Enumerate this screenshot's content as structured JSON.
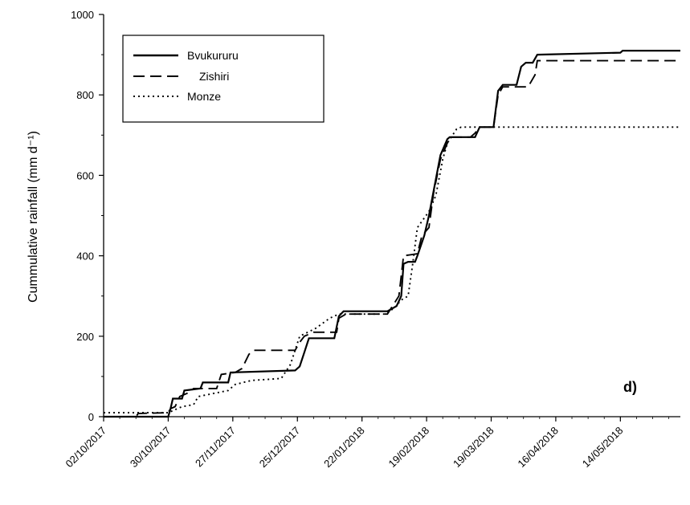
{
  "chart_data": {
    "type": "line",
    "panel_label": "d)",
    "xlabel": "",
    "ylabel": "Cummulative rainfall (mm d⁻¹)",
    "ylim": [
      0,
      1000
    ],
    "y_ticks": [
      0,
      200,
      400,
      600,
      800,
      1000
    ],
    "xlim": [
      "2017-10-02",
      "2018-06-09"
    ],
    "x_ticks": [
      "2017-10-02",
      "2017-10-30",
      "2017-11-27",
      "2017-12-25",
      "2018-01-22",
      "2018-02-19",
      "2018-03-19",
      "2018-04-16",
      "2018-05-14"
    ],
    "x_tick_labels": [
      "02/10/2017",
      "30/10/2017",
      "27/11/2017",
      "25/12/2017",
      "22/01/2018",
      "19/02/2018",
      "19/03/2018",
      "16/04/2018",
      "14/05/2018"
    ],
    "legend_position": "top-left",
    "series": [
      {
        "name": "Bvukururu",
        "style": "solid",
        "points": [
          [
            "2017-10-02",
            0
          ],
          [
            "2017-10-30",
            0
          ],
          [
            "2017-10-31",
            20
          ],
          [
            "2017-11-01",
            45
          ],
          [
            "2017-11-05",
            45
          ],
          [
            "2017-11-06",
            65
          ],
          [
            "2017-11-13",
            70
          ],
          [
            "2017-11-14",
            85
          ],
          [
            "2017-11-25",
            85
          ],
          [
            "2017-11-26",
            110
          ],
          [
            "2017-12-24",
            115
          ],
          [
            "2017-12-26",
            125
          ],
          [
            "2017-12-28",
            160
          ],
          [
            "2017-12-30",
            195
          ],
          [
            "2018-01-10",
            195
          ],
          [
            "2018-01-12",
            250
          ],
          [
            "2018-01-14",
            262
          ],
          [
            "2018-02-02",
            262
          ],
          [
            "2018-02-06",
            275
          ],
          [
            "2018-02-08",
            300
          ],
          [
            "2018-02-09",
            380
          ],
          [
            "2018-02-11",
            385
          ],
          [
            "2018-02-14",
            385
          ],
          [
            "2018-02-15",
            400
          ],
          [
            "2018-02-18",
            450
          ],
          [
            "2018-02-20",
            500
          ],
          [
            "2018-02-22",
            560
          ],
          [
            "2018-02-25",
            650
          ],
          [
            "2018-02-28",
            690
          ],
          [
            "2018-03-01",
            695
          ],
          [
            "2018-03-12",
            695
          ],
          [
            "2018-03-14",
            720
          ],
          [
            "2018-03-20",
            720
          ],
          [
            "2018-03-22",
            810
          ],
          [
            "2018-03-24",
            825
          ],
          [
            "2018-03-30",
            825
          ],
          [
            "2018-04-01",
            870
          ],
          [
            "2018-04-03",
            880
          ],
          [
            "2018-04-06",
            880
          ],
          [
            "2018-04-08",
            900
          ],
          [
            "2018-05-14",
            905
          ],
          [
            "2018-05-15",
            910
          ],
          [
            "2018-06-09",
            910
          ]
        ]
      },
      {
        "name": "Zishiri",
        "style": "dashed",
        "points": [
          [
            "2017-10-02",
            0
          ],
          [
            "2017-10-16",
            0
          ],
          [
            "2017-10-17",
            8
          ],
          [
            "2017-10-30",
            10
          ],
          [
            "2017-10-31",
            20
          ],
          [
            "2017-11-02",
            25
          ],
          [
            "2017-11-04",
            50
          ],
          [
            "2017-11-06",
            55
          ],
          [
            "2017-11-08",
            60
          ],
          [
            "2017-11-10",
            70
          ],
          [
            "2017-11-20",
            70
          ],
          [
            "2017-11-22",
            105
          ],
          [
            "2017-11-28",
            110
          ],
          [
            "2017-12-01",
            120
          ],
          [
            "2017-12-04",
            155
          ],
          [
            "2017-12-06",
            165
          ],
          [
            "2017-12-24",
            165
          ],
          [
            "2017-12-26",
            185
          ],
          [
            "2017-12-28",
            200
          ],
          [
            "2018-01-01",
            210
          ],
          [
            "2018-01-11",
            210
          ],
          [
            "2018-01-12",
            245
          ],
          [
            "2018-01-15",
            255
          ],
          [
            "2018-02-02",
            255
          ],
          [
            "2018-02-07",
            300
          ],
          [
            "2018-02-09",
            400
          ],
          [
            "2018-02-15",
            405
          ],
          [
            "2018-02-17",
            450
          ],
          [
            "2018-02-20",
            470
          ],
          [
            "2018-02-22",
            555
          ],
          [
            "2018-02-25",
            640
          ],
          [
            "2018-02-28",
            680
          ],
          [
            "2018-03-01",
            695
          ],
          [
            "2018-03-10",
            695
          ],
          [
            "2018-03-12",
            705
          ],
          [
            "2018-03-14",
            720
          ],
          [
            "2018-03-20",
            720
          ],
          [
            "2018-03-22",
            800
          ],
          [
            "2018-03-24",
            820
          ],
          [
            "2018-04-04",
            820
          ],
          [
            "2018-04-07",
            850
          ],
          [
            "2018-04-08",
            885
          ],
          [
            "2018-06-09",
            885
          ]
        ]
      },
      {
        "name": "Monze",
        "style": "dotted",
        "points": [
          [
            "2017-10-02",
            10
          ],
          [
            "2017-10-30",
            10
          ],
          [
            "2017-11-01",
            15
          ],
          [
            "2017-11-05",
            25
          ],
          [
            "2017-11-10",
            30
          ],
          [
            "2017-11-12",
            50
          ],
          [
            "2017-11-25",
            65
          ],
          [
            "2017-11-28",
            80
          ],
          [
            "2017-12-05",
            90
          ],
          [
            "2017-12-18",
            95
          ],
          [
            "2017-12-22",
            130
          ],
          [
            "2017-12-26",
            200
          ],
          [
            "2018-01-02",
            220
          ],
          [
            "2018-01-08",
            245
          ],
          [
            "2018-01-12",
            255
          ],
          [
            "2018-02-01",
            255
          ],
          [
            "2018-02-05",
            270
          ],
          [
            "2018-02-08",
            290
          ],
          [
            "2018-02-11",
            300
          ],
          [
            "2018-02-13",
            380
          ],
          [
            "2018-02-15",
            470
          ],
          [
            "2018-02-20",
            510
          ],
          [
            "2018-02-23",
            550
          ],
          [
            "2018-02-26",
            640
          ],
          [
            "2018-02-28",
            680
          ],
          [
            "2018-03-04",
            715
          ],
          [
            "2018-03-06",
            720
          ],
          [
            "2018-06-09",
            720
          ]
        ]
      }
    ]
  }
}
